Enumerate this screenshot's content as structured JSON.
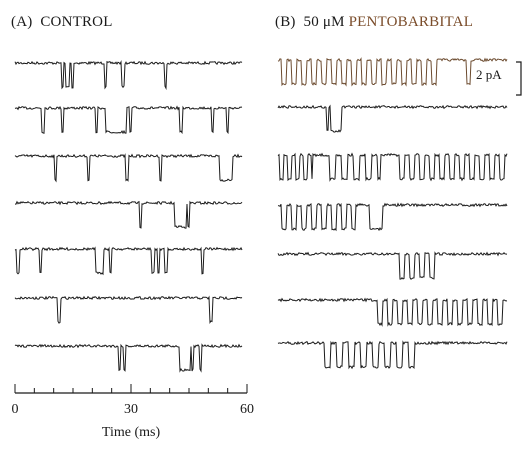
{
  "panel_a": {
    "label": "(A)",
    "title": "CONTROL"
  },
  "panel_b": {
    "label": "(B)",
    "concentration": "50 μM",
    "drug": "PENTOBARBITAL"
  },
  "time_axis": {
    "ticks": [
      "0",
      "30",
      "60"
    ],
    "title": "Time (ms)"
  },
  "scale_bar": {
    "label": "2 pA"
  },
  "colors": {
    "trace": "#1a1a1a",
    "trace_highlight": "#6b4a2e",
    "drug_label": "#7a4c2a"
  }
}
